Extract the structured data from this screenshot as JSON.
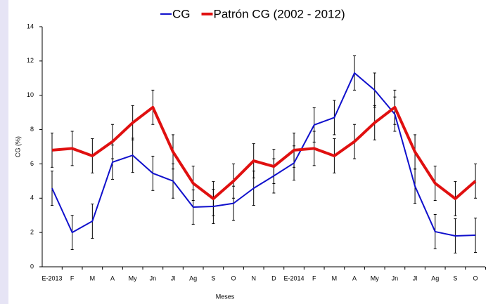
{
  "chart_data": {
    "type": "line",
    "categories": [
      "E-2013",
      "F",
      "M",
      "A",
      "My",
      "Jn",
      "Jl",
      "Ag",
      "S",
      "O",
      "N",
      "D",
      "E-2014",
      "F",
      "M",
      "A",
      "My",
      "Jn",
      "Jl",
      "Ag",
      "S",
      "O"
    ],
    "series": [
      {
        "name": "CG",
        "color": "#1010cc",
        "width": 2,
        "values": [
          4.58,
          2.0,
          2.66,
          6.1,
          6.5,
          5.45,
          5.0,
          3.48,
          3.52,
          3.7,
          4.58,
          5.3,
          6.05,
          8.27,
          8.7,
          11.3,
          10.3,
          8.9,
          4.7,
          2.05,
          1.8,
          1.84
        ],
        "errors": [
          1,
          1,
          1,
          1,
          1,
          1,
          1,
          1,
          1,
          1,
          1,
          1,
          1,
          1,
          1,
          1,
          1,
          1,
          1,
          1,
          1,
          1
        ]
      },
      {
        "name": "Patrón CG (2002 - 2012)",
        "color": "#e01010",
        "width": 4,
        "values": [
          6.8,
          6.9,
          6.47,
          7.3,
          8.4,
          9.3,
          6.7,
          4.87,
          3.97,
          5.0,
          6.18,
          5.85,
          6.8,
          6.9,
          6.47,
          7.3,
          8.4,
          9.3,
          6.7,
          4.87,
          3.97,
          5.0
        ],
        "errors": [
          1,
          1,
          1,
          1,
          1,
          1,
          1,
          1,
          1,
          1,
          1,
          1,
          1,
          1,
          1,
          1,
          1,
          1,
          1,
          1,
          1,
          1
        ]
      }
    ],
    "x_label": "Meses",
    "y_label": "CG (%)",
    "ylim": [
      0,
      14
    ],
    "yticks": [
      0,
      2,
      4,
      6,
      8,
      10,
      12,
      14
    ]
  }
}
